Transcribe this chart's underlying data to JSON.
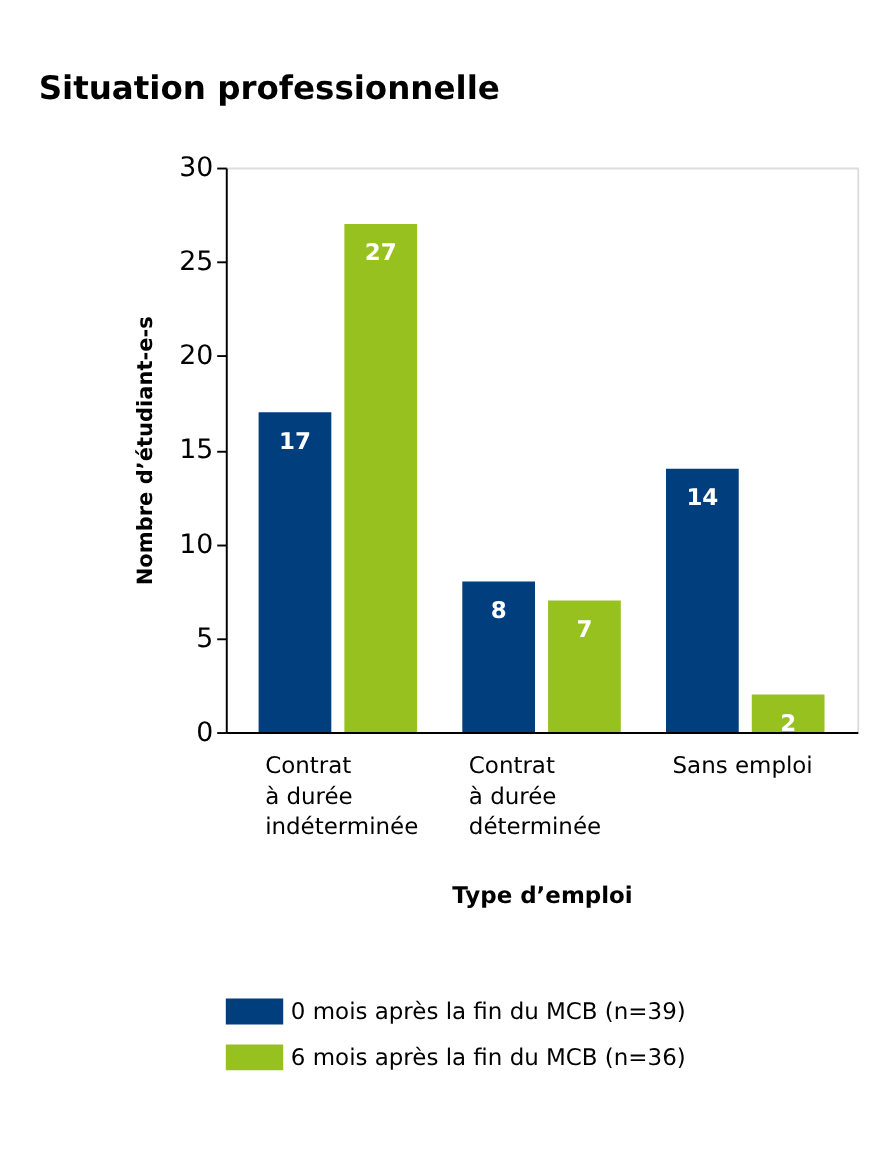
{
  "chart_data": {
    "type": "bar",
    "title": "Situation professionnelle",
    "xlabel": "Type d’emploi",
    "ylabel": "Nombre d’étudiant-e-s",
    "categories": [
      "Contrat\nà durée\nindéterminée",
      "Contrat\nà durée\ndéterminée",
      "Sans emploi"
    ],
    "series": [
      {
        "name": "0 mois après la fin du MCB (n=39)",
        "color": "#003e7e",
        "values": [
          17,
          8,
          14
        ]
      },
      {
        "name": "6 mois après la fin du MCB (n=36)",
        "color": "#97c11f",
        "values": [
          27,
          7,
          2
        ]
      }
    ],
    "ylim": [
      0,
      30
    ],
    "yticks": [
      0,
      5,
      10,
      15,
      20,
      25,
      30
    ],
    "grid": false,
    "legend": "bottom",
    "data_labels": true
  }
}
